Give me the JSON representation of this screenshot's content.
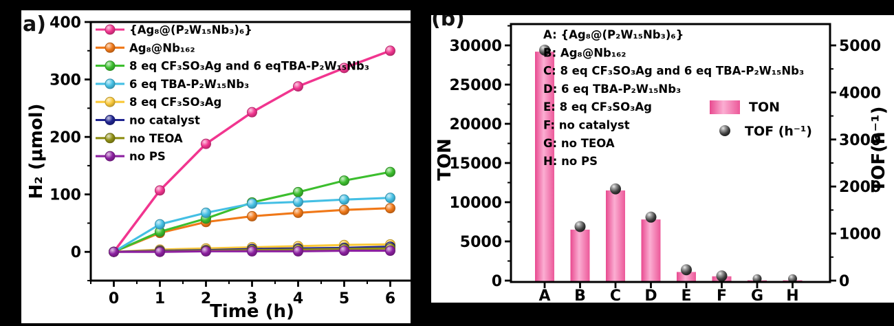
{
  "figure": {
    "background": "#000000",
    "panel_background": "#ffffff"
  },
  "panel_a": {
    "label": "a)"
  },
  "panel_b": {
    "label": "(b)"
  },
  "chart_data": [
    {
      "id": "a",
      "type": "line",
      "title": "",
      "xlabel": "Time (h)",
      "ylabel": "H₂ (μmol)",
      "xlim": [
        -0.5,
        6.5
      ],
      "ylim": [
        -50,
        400
      ],
      "x_ticks": [
        0,
        1,
        2,
        3,
        4,
        5,
        6
      ],
      "y_ticks": [
        0,
        100,
        200,
        300,
        400
      ],
      "x_minor_step": 0.5,
      "y_minor_step": 50,
      "grid": false,
      "legend_position": "top-left",
      "x": [
        0,
        1,
        2,
        3,
        4,
        5,
        6
      ],
      "series": [
        {
          "name": "{Ag₈@(P₂W₁₅Nb₃)₆}",
          "color": "#f1358f",
          "values": [
            0,
            107,
            188,
            243,
            288,
            320,
            350
          ]
        },
        {
          "name": "Ag₈@Nb₁₆₂",
          "color": "#f07818",
          "values": [
            0,
            33,
            52,
            62,
            68,
            73,
            76
          ]
        },
        {
          "name": "8 eq CF₃SO₃Ag and 6 eqTBA-P₂W₁₅Nb₃",
          "color": "#3cbe2e",
          "values": [
            0,
            35,
            58,
            86,
            104,
            124,
            139
          ]
        },
        {
          "name": "6 eq TBA-P₂W₁₅Nb₃",
          "color": "#44bfe4",
          "values": [
            0,
            48,
            68,
            84,
            87,
            91,
            94
          ]
        },
        {
          "name": "8 eq CF₃SO₃Ag",
          "color": "#f9c839",
          "values": [
            0,
            4,
            6,
            8,
            10,
            12,
            13
          ]
        },
        {
          "name": "no catalyst",
          "color": "#1f2490",
          "values": [
            0,
            2,
            3,
            5,
            6,
            7,
            9
          ]
        },
        {
          "name": "no TEOA",
          "color": "#8f8f14",
          "values": [
            0,
            1,
            2,
            3,
            4,
            5,
            6
          ]
        },
        {
          "name": "no PS",
          "color": "#8c20a0",
          "values": [
            0,
            0,
            1,
            1,
            1,
            2,
            2
          ]
        }
      ]
    },
    {
      "id": "b",
      "type": "bar",
      "title": "",
      "categories": [
        "A",
        "B",
        "C",
        "D",
        "E",
        "F",
        "G",
        "H"
      ],
      "ylabel_left": "TON",
      "ylabel_right": "TOF(h⁻¹)",
      "ylim_left": [
        0,
        32800
      ],
      "ylim_right": [
        0,
        5467
      ],
      "left_ticks": [
        0,
        5000,
        10000,
        15000,
        20000,
        25000,
        30000
      ],
      "right_ticks": [
        0,
        1000,
        2000,
        3000,
        4000,
        5000
      ],
      "left_minor_step": 2500,
      "right_minor_step": 500,
      "grid": false,
      "bar_color": "#f25d9c",
      "point_color": "#3d3d3d",
      "bar_gradient": [
        "#e8498f",
        "#fbaed2",
        "#ec5899"
      ],
      "sphere_gradient": [
        "#ececec",
        "#9e9e9e",
        "#3d3d3d",
        "#141414"
      ],
      "series": [
        {
          "name": "TON",
          "type": "bar",
          "values": [
            29200,
            6500,
            11500,
            7800,
            1100,
            550,
            40,
            40
          ]
        },
        {
          "name": "TOF (h⁻¹)",
          "type": "point",
          "values": [
            4900,
            1150,
            1950,
            1350,
            230,
            100,
            40,
            40
          ]
        }
      ],
      "annotation_legend": [
        "A: {Ag₈@(P₂W₁₅Nb₃)₆}",
        "B: Ag₈@Nb₁₆₂",
        "C: 8 eq CF₃SO₃Ag and 6 eq TBA-P₂W₁₅Nb₃",
        "D: 6 eq TBA-P₂W₁₅Nb₃",
        "E: 8 eq CF₃SO₃Ag",
        "F: no catalyst",
        "G: no TEOA",
        "H: no PS"
      ]
    }
  ]
}
